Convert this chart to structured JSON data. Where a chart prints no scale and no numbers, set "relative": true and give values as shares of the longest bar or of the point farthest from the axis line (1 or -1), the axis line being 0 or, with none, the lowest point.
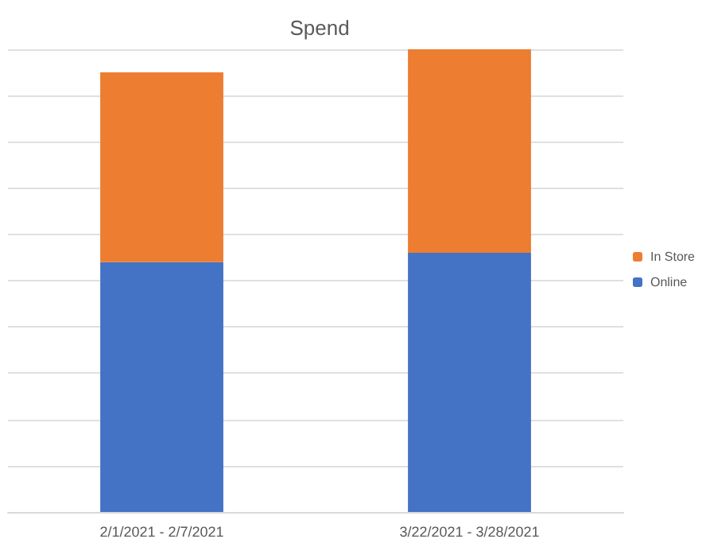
{
  "chart_data": {
    "type": "bar",
    "title": "Spend",
    "categories": [
      "2/1/2021 - 2/7/2021",
      "3/22/2021 - 3/28/2021"
    ],
    "stacked": true,
    "relative": true,
    "grid": "y",
    "legend": "right",
    "series": [
      {
        "name": "Online",
        "color": "#4472c4",
        "values": [
          0.54,
          0.56
        ]
      },
      {
        "name": "In Store",
        "color": "#ed7d31",
        "values": [
          0.41,
          0.44
        ]
      }
    ]
  }
}
